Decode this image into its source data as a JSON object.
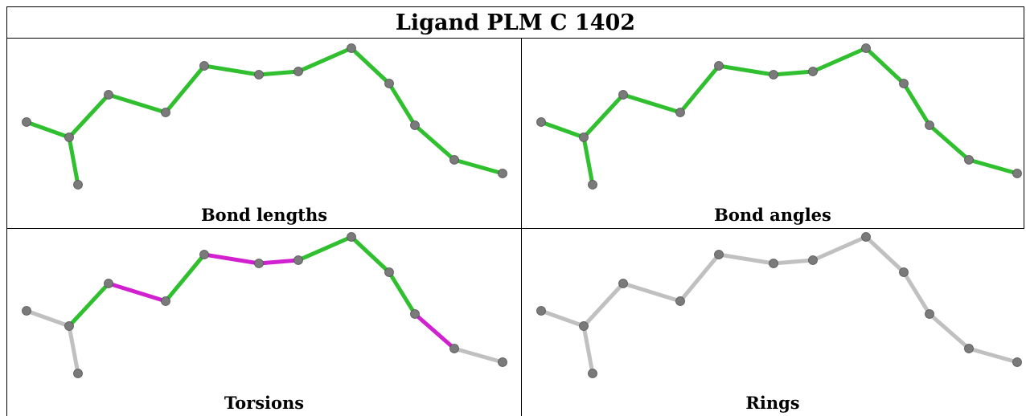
{
  "title": "Ligand PLM C 1402",
  "panels": [
    {
      "caption": "Bond lengths",
      "bond_colors": [
        "green",
        "green",
        "green",
        "green",
        "green",
        "green",
        "green",
        "green",
        "green",
        "green",
        "green",
        "green"
      ]
    },
    {
      "caption": "Bond angles",
      "bond_colors": [
        "green",
        "green",
        "green",
        "green",
        "green",
        "green",
        "green",
        "green",
        "green",
        "green",
        "green",
        "green"
      ]
    },
    {
      "caption": "Torsions",
      "bond_colors": [
        "gray",
        "gray",
        "green",
        "magenta",
        "green",
        "magenta",
        "magenta",
        "green",
        "green",
        "green",
        "magenta",
        "gray"
      ]
    },
    {
      "caption": "Rings",
      "bond_colors": [
        "gray",
        "gray",
        "gray",
        "gray",
        "gray",
        "gray",
        "gray",
        "gray",
        "gray",
        "gray",
        "gray",
        "gray"
      ]
    }
  ],
  "palette": {
    "green": "#2fbf2f",
    "magenta": "#d020d0",
    "gray": "#c0c0c0",
    "atom": "#7a7a7a"
  }
}
